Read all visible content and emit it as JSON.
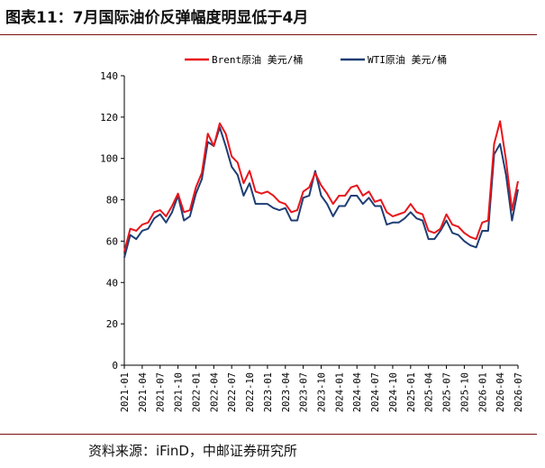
{
  "header": {
    "title": "图表11：7月国际油价反弹幅度明显低于4月"
  },
  "footer": {
    "source": "资料来源：iFinD，中邮证券研究所"
  },
  "chart_data": {
    "type": "line",
    "title": "",
    "xlabel": "",
    "ylabel": "",
    "ylim": [
      0,
      140
    ],
    "yticks": [
      0,
      20,
      40,
      60,
      80,
      100,
      120,
      140
    ],
    "grid": false,
    "legend_position": "top-center",
    "x": [
      "2021-01",
      "2021-02",
      "2021-03",
      "2021-04",
      "2021-05",
      "2021-06",
      "2021-07",
      "2021-08",
      "2021-09",
      "2021-10",
      "2021-11",
      "2021-12",
      "2022-01",
      "2022-02",
      "2022-03",
      "2022-04",
      "2022-05",
      "2022-06",
      "2022-07",
      "2022-08",
      "2022-09",
      "2022-10",
      "2022-11",
      "2022-12",
      "2023-01",
      "2023-02",
      "2023-03",
      "2023-04",
      "2023-05",
      "2023-06",
      "2023-07",
      "2023-08",
      "2023-09",
      "2023-10",
      "2023-11",
      "2023-12",
      "2024-01",
      "2024-02",
      "2024-03",
      "2024-04",
      "2024-05",
      "2024-06",
      "2024-07",
      "2024-08",
      "2024-09",
      "2024-10",
      "2024-11",
      "2024-12",
      "2025-01",
      "2025-02",
      "2025-03",
      "2025-04",
      "2025-05",
      "2025-06",
      "2025-07",
      "2025-08",
      "2025-09",
      "2025-10",
      "2025-11",
      "2025-12",
      "2026-01",
      "2026-02",
      "2026-03",
      "2026-04",
      "2026-05",
      "2026-06",
      "2026-07"
    ],
    "xtick_labels": [
      "2021-01",
      "2021-04",
      "2021-07",
      "2021-10",
      "2022-01",
      "2022-04",
      "2022-07",
      "2022-10",
      "2023-01",
      "2023-04",
      "2023-07",
      "2023-10",
      "2024-01",
      "2024-04",
      "2024-07",
      "2024-10",
      "2025-01",
      "2025-04",
      "2025-07",
      "2025-10",
      "2026-01",
      "2026-04",
      "2026-07"
    ],
    "series": [
      {
        "name": "Brent原油 美元/桶",
        "color": "#e8151b",
        "values": [
          55,
          66,
          65,
          68,
          69,
          74,
          75,
          72,
          77,
          83,
          74,
          75,
          86,
          93,
          112,
          106,
          117,
          112,
          101,
          98,
          88,
          94,
          84,
          83,
          84,
          82,
          79,
          78,
          74,
          75,
          84,
          86,
          93,
          87,
          83,
          78,
          82,
          82,
          86,
          87,
          82,
          84,
          79,
          80,
          74,
          72,
          73,
          74,
          78,
          74,
          73,
          65,
          64,
          66,
          73,
          68,
          67,
          64,
          62,
          61,
          69,
          70,
          107,
          118,
          99,
          75,
          89
        ]
      },
      {
        "name": "WTI原油 美元/桶",
        "color": "#1f3e74",
        "values": [
          52,
          63,
          61,
          65,
          66,
          71,
          73,
          69,
          74,
          82,
          70,
          72,
          83,
          90,
          108,
          106,
          115,
          106,
          96,
          92,
          82,
          88,
          78,
          78,
          78,
          76,
          75,
          76,
          70,
          70,
          81,
          82,
          94,
          82,
          78,
          72,
          77,
          77,
          82,
          82,
          78,
          81,
          77,
          77,
          68,
          69,
          69,
          71,
          74,
          71,
          70,
          61,
          61,
          65,
          70,
          64,
          63,
          60,
          58,
          57,
          65,
          65,
          102,
          107,
          92,
          70,
          85
        ]
      }
    ]
  }
}
